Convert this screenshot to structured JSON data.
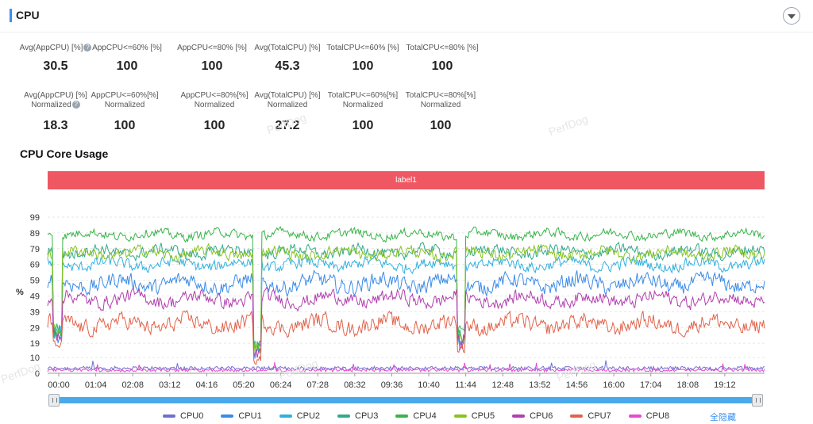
{
  "header": {
    "title": "CPU"
  },
  "metrics": {
    "row1": [
      {
        "label": "Avg(AppCPU) [%]",
        "value": "30.5",
        "help": true
      },
      {
        "label": "AppCPU<=60% [%]",
        "value": "100"
      },
      {
        "label": "AppCPU<=80% [%]",
        "value": "100"
      },
      {
        "label": "Avg(TotalCPU) [%]",
        "value": "45.3"
      },
      {
        "label": "TotalCPU<=60% [%]",
        "value": "100"
      },
      {
        "label": "TotalCPU<=80% [%]",
        "value": "100"
      }
    ],
    "row2": [
      {
        "label1": "Avg(AppCPU) [%]",
        "label2": "Normalized",
        "value": "18.3",
        "help": true
      },
      {
        "label1": "AppCPU<=60%[%]",
        "label2": "Normalized",
        "value": "100"
      },
      {
        "label1": "AppCPU<=80%[%]",
        "label2": "Normalized",
        "value": "100"
      },
      {
        "label1": "Avg(TotalCPU) [%]",
        "label2": "Normalized",
        "value": "27.2"
      },
      {
        "label1": "TotalCPU<=60%[%]",
        "label2": "Normalized",
        "value": "100"
      },
      {
        "label1": "TotalCPU<=80%[%]",
        "label2": "Normalized",
        "value": "100"
      }
    ]
  },
  "section": {
    "title": "CPU Core Usage"
  },
  "band": {
    "label": "label1"
  },
  "watermark": "PerfDog",
  "legend": {
    "hide_all": "全隐藏"
  },
  "chart_data": {
    "type": "line",
    "title": "CPU Core Usage",
    "ylabel": "%",
    "ylim": [
      0,
      105
    ],
    "yticks": [
      0,
      10,
      19,
      29,
      39,
      49,
      59,
      69,
      79,
      89,
      99
    ],
    "xlim": [
      0,
      1240
    ],
    "xticks": [
      {
        "t": 0,
        "label": "00:00"
      },
      {
        "t": 64,
        "label": "01:04"
      },
      {
        "t": 128,
        "label": "02:08"
      },
      {
        "t": 192,
        "label": "03:12"
      },
      {
        "t": 256,
        "label": "04:16"
      },
      {
        "t": 320,
        "label": "05:20"
      },
      {
        "t": 384,
        "label": "06:24"
      },
      {
        "t": 448,
        "label": "07:28"
      },
      {
        "t": 512,
        "label": "08:32"
      },
      {
        "t": 576,
        "label": "09:36"
      },
      {
        "t": 640,
        "label": "10:40"
      },
      {
        "t": 704,
        "label": "11:44"
      },
      {
        "t": 768,
        "label": "12:48"
      },
      {
        "t": 832,
        "label": "13:52"
      },
      {
        "t": 896,
        "label": "14:56"
      },
      {
        "t": 960,
        "label": "16:00"
      },
      {
        "t": 1024,
        "label": "17:04"
      },
      {
        "t": 1088,
        "label": "18:08"
      },
      {
        "t": 1152,
        "label": "19:12"
      }
    ],
    "grid": true,
    "legend_position": "bottom",
    "series": [
      {
        "name": "CPU0",
        "color": "#6f6fd1",
        "base": 2,
        "amp": 1.2
      },
      {
        "name": "CPU1",
        "color": "#3a8be8",
        "base": 57,
        "amp": 7
      },
      {
        "name": "CPU2",
        "color": "#2fb0e0",
        "base": 69,
        "amp": 5
      },
      {
        "name": "CPU3",
        "color": "#33a98c",
        "base": 77,
        "amp": 5
      },
      {
        "name": "CPU4",
        "color": "#38b44a",
        "base": 88,
        "amp": 4
      },
      {
        "name": "CPU5",
        "color": "#88c321",
        "base": 76,
        "amp": 5
      },
      {
        "name": "CPU6",
        "color": "#b13fae",
        "base": 47,
        "amp": 6
      },
      {
        "name": "CPU7",
        "color": "#e0634b",
        "base": 31,
        "amp": 7
      },
      {
        "name": "CPU8",
        "color": "#e64ad1",
        "base": 1,
        "amp": 1
      }
    ],
    "dips": [
      {
        "from": 10,
        "to": 26,
        "level": 15
      },
      {
        "from": 355,
        "to": 370,
        "level": 5
      },
      {
        "from": 708,
        "to": 722,
        "level": 12
      }
    ],
    "samples": 620
  }
}
